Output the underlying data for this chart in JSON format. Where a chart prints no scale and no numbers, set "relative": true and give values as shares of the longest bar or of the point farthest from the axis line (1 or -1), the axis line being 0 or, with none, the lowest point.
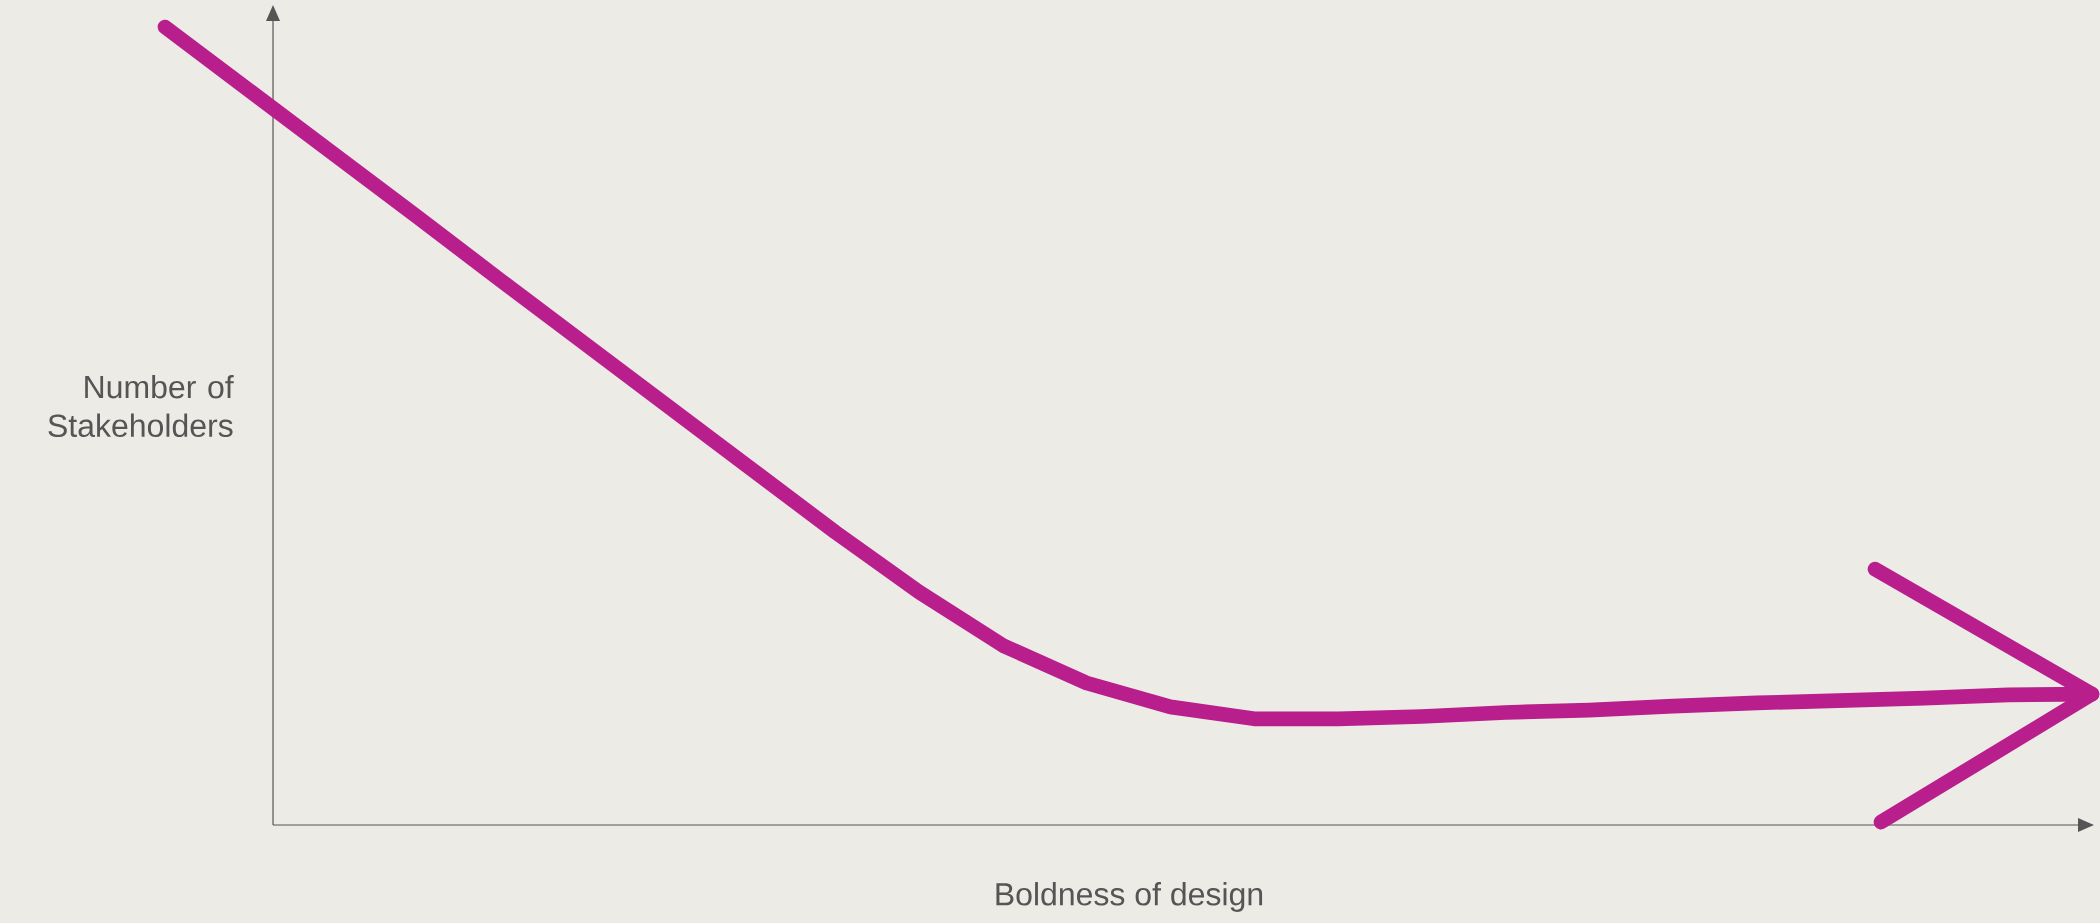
{
  "chart_data": {
    "type": "line",
    "relative": true,
    "xlabel": "Boldness of design",
    "ylabel": "Number of Stakeholders",
    "line_style": "solid",
    "categories": [
      null,
      null,
      null,
      null,
      null,
      null,
      null,
      null,
      null,
      null,
      null,
      null,
      null,
      null,
      null,
      null,
      null,
      null,
      null,
      null,
      null,
      null,
      null,
      null
    ],
    "series": [
      {
        "color": "#b81e8c",
        "values": [
          1,
          0.921,
          0.842,
          0.763,
          0.683,
          0.604,
          0.525,
          0.446,
          0.367,
          0.292,
          0.225,
          0.178,
          0.148,
          0.133,
          0.133,
          0.136,
          0.141,
          0.144,
          0.149,
          0.153,
          0.156,
          0.159,
          0.163,
          0.164
        ]
      }
    ]
  }
}
